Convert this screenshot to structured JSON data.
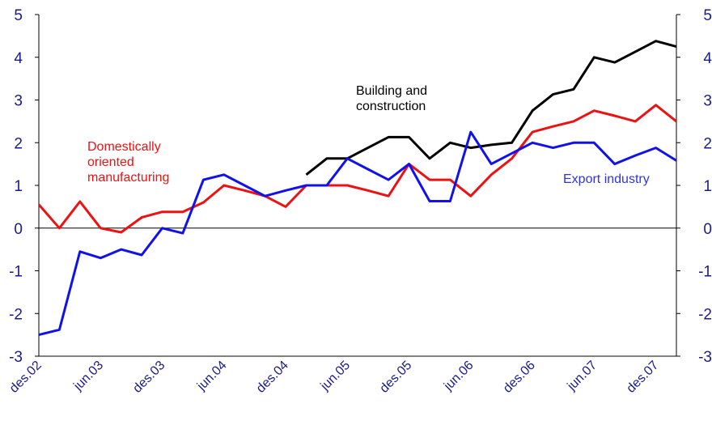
{
  "chart_data": {
    "type": "line",
    "categories": [
      "des.02",
      null,
      null,
      "jun.03",
      null,
      null,
      "des.03",
      null,
      null,
      "jun.04",
      null,
      null,
      "des.04",
      null,
      null,
      "jun.05",
      null,
      null,
      "des.05",
      null,
      null,
      "jun.06",
      null,
      null,
      "des.06",
      null,
      null,
      "jun.07",
      null,
      null,
      "des.07",
      null
    ],
    "series": [
      {
        "name": "Domestically oriented manufacturing",
        "color": "#ee1111",
        "values": [
          0.55,
          0,
          0.62,
          0,
          -0.1,
          0.25,
          0.38,
          0.38,
          0.6,
          1.0,
          0.88,
          0.75,
          0.5,
          1.0,
          1.0,
          1.0,
          0.88,
          0.75,
          1.5,
          1.13,
          1.13,
          0.75,
          1.25,
          1.63,
          2.25,
          2.38,
          2.5,
          2.75,
          2.63,
          2.5,
          2.88,
          2.5
        ]
      },
      {
        "name": "Building and construction",
        "color": "#000000",
        "values": [
          null,
          null,
          null,
          null,
          null,
          null,
          null,
          null,
          null,
          null,
          null,
          null,
          null,
          1.25,
          1.63,
          1.63,
          1.88,
          2.13,
          2.13,
          1.63,
          2.0,
          1.88,
          1.95,
          2.0,
          2.75,
          3.13,
          3.25,
          4.0,
          3.88,
          4.13,
          4.38,
          4.25
        ]
      },
      {
        "name": "Export industry",
        "color": "#1111ee",
        "values": [
          -2.5,
          -2.38,
          -0.55,
          -0.7,
          -0.5,
          -0.63,
          0,
          -0.12,
          1.13,
          1.25,
          1.0,
          0.75,
          0.88,
          1.0,
          1.0,
          1.63,
          1.38,
          1.13,
          1.5,
          0.63,
          0.63,
          2.25,
          1.5,
          1.75,
          2.0,
          1.88,
          2.0,
          2.0,
          1.5,
          1.7,
          1.88,
          1.58
        ]
      }
    ],
    "ylim": [
      -3,
      5
    ],
    "yticks": [
      -3,
      -2,
      -1,
      0,
      1,
      2,
      3,
      4,
      5
    ],
    "y2lim": [
      -3,
      5
    ],
    "y2ticks": [
      -3,
      -2,
      -1,
      0,
      1,
      2,
      3,
      4,
      5
    ]
  }
}
